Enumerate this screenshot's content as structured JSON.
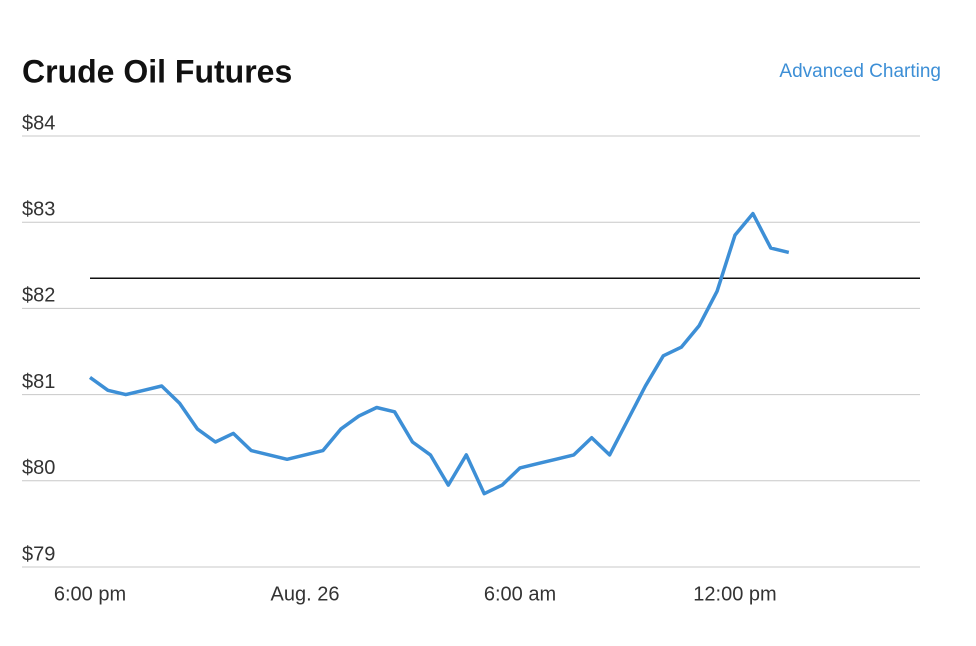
{
  "chart_data": {
    "type": "line",
    "title": "Crude Oil Futures",
    "link": "Advanced Charting",
    "categories": [
      "6:00 pm",
      null,
      null,
      null,
      null,
      null,
      null,
      null,
      null,
      null,
      null,
      null,
      "Aug. 26",
      null,
      null,
      null,
      null,
      null,
      null,
      null,
      null,
      null,
      null,
      null,
      "6:00 am",
      null,
      null,
      null,
      null,
      null,
      null,
      null,
      null,
      null,
      null,
      null,
      "12:00 pm",
      null,
      null,
      null,
      null,
      null,
      null,
      null,
      null,
      null,
      null
    ],
    "values": [
      81.2,
      81.05,
      81.0,
      81.05,
      81.1,
      80.9,
      80.6,
      80.45,
      80.55,
      80.35,
      80.3,
      80.25,
      80.3,
      80.35,
      80.6,
      80.75,
      80.85,
      80.8,
      80.45,
      80.3,
      79.95,
      80.3,
      79.85,
      79.95,
      80.15,
      80.2,
      80.25,
      80.3,
      80.5,
      80.3,
      80.7,
      81.1,
      81.45,
      81.55,
      81.8,
      82.2,
      82.85,
      83.1,
      82.7,
      82.65,
      null,
      null,
      null,
      null,
      null,
      null,
      null
    ],
    "color": "#3d8fd6",
    "reference_line": 82.35,
    "ylim": [
      79,
      84
    ],
    "yticks": [
      {
        "value": 79,
        "label": "$79"
      },
      {
        "value": 80,
        "label": "$80"
      },
      {
        "value": 81,
        "label": "$81"
      },
      {
        "value": 82,
        "label": "$82"
      },
      {
        "value": 83,
        "label": "$83"
      },
      {
        "value": 84,
        "label": "$84"
      }
    ],
    "grid": true
  }
}
